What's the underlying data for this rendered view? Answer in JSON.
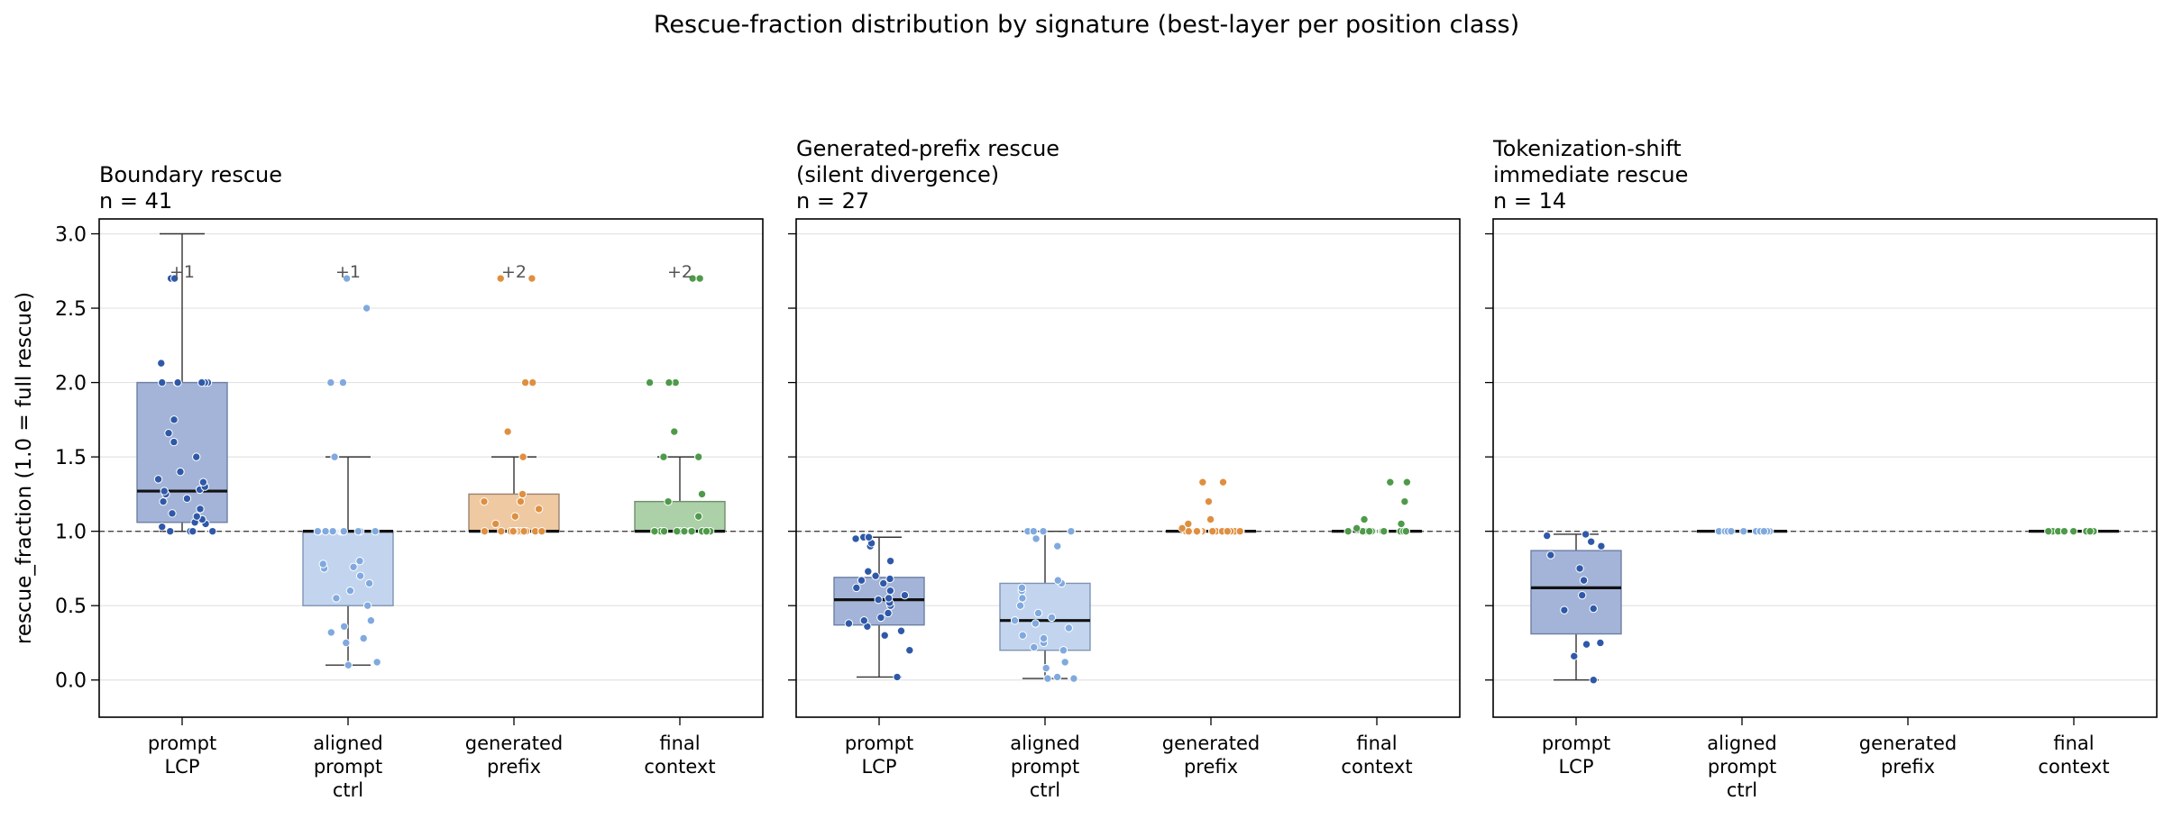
{
  "suptitle": "Rescue-fraction distribution by signature (best-layer per position class)",
  "chart_data": {
    "type": "box",
    "ylabel": "rescue_fraction  (1.0 = full rescue)",
    "ylim": [
      -0.25,
      3.1
    ],
    "yticks": [
      "0.0",
      "0.5",
      "1.0",
      "1.5",
      "2.0",
      "2.5",
      "3.0"
    ],
    "reference_line": 1.0,
    "grid": "horizontal",
    "categories": [
      [
        "prompt",
        "LCP"
      ],
      [
        "aligned",
        "prompt",
        "ctrl"
      ],
      [
        "generated",
        "prefix"
      ],
      [
        "final",
        "context"
      ]
    ],
    "colors": {
      "prompt LCP": {
        "box": "#a3b4d8",
        "edge": "#6d7fa3",
        "point": "#2f59a8"
      },
      "aligned prompt ctrl": {
        "box": "#c3d5ee",
        "edge": "#7e93b3",
        "point": "#80a9de"
      },
      "generated prefix": {
        "box": "#efc9a2",
        "edge": "#9a8470",
        "point": "#df8f40"
      },
      "final context": {
        "box": "#acd0a8",
        "edge": "#6f8e6c",
        "point": "#4e9a4a"
      }
    },
    "panels": [
      {
        "title": [
          "Boundary rescue",
          "n = 41"
        ],
        "boxes": [
          {
            "q1": 1.06,
            "median": 1.27,
            "q3": 2.0,
            "whisker_low": 1.0,
            "whisker_high": 3.0,
            "points": [
              1.0,
              1.0,
              1.0,
              1.0,
              1.0,
              1.0,
              1.03,
              1.05,
              1.06,
              1.08,
              1.1,
              1.12,
              1.15,
              1.2,
              1.22,
              1.25,
              1.27,
              1.28,
              1.3,
              1.33,
              1.35,
              1.4,
              1.5,
              1.6,
              1.66,
              1.75,
              2.0,
              2.0,
              2.0,
              2.0,
              2.0,
              2.0,
              2.13,
              2.7,
              2.7
            ],
            "overflow": "+1"
          },
          {
            "q1": 0.5,
            "median": 1.0,
            "q3": 1.0,
            "whisker_low": 0.1,
            "whisker_high": 1.5,
            "points": [
              0.1,
              0.12,
              0.25,
              0.28,
              0.32,
              0.36,
              0.4,
              0.5,
              0.55,
              0.6,
              0.65,
              0.7,
              0.75,
              0.76,
              0.78,
              0.8,
              1.0,
              1.0,
              1.0,
              1.0,
              1.0,
              1.0,
              1.0,
              1.0,
              1.0,
              1.0,
              1.0,
              1.0,
              1.0,
              1.5,
              1.5,
              2.0,
              2.0,
              2.5,
              2.7
            ],
            "overflow": "+1"
          },
          {
            "q1": 1.0,
            "median": 1.0,
            "q3": 1.25,
            "whisker_low": 1.0,
            "whisker_high": 1.5,
            "points": [
              1.0,
              1.0,
              1.0,
              1.0,
              1.0,
              1.0,
              1.0,
              1.0,
              1.0,
              1.0,
              1.0,
              1.0,
              1.05,
              1.1,
              1.15,
              1.2,
              1.2,
              1.25,
              1.5,
              1.67,
              2.0,
              2.0,
              2.7,
              2.7
            ],
            "overflow": "+2"
          },
          {
            "q1": 1.0,
            "median": 1.0,
            "q3": 1.2,
            "whisker_low": 1.0,
            "whisker_high": 1.5,
            "points": [
              1.0,
              1.0,
              1.0,
              1.0,
              1.0,
              1.0,
              1.0,
              1.0,
              1.0,
              1.0,
              1.0,
              1.0,
              1.0,
              1.1,
              1.2,
              1.25,
              1.5,
              1.5,
              1.67,
              2.0,
              2.0,
              2.0,
              2.7,
              2.7
            ],
            "overflow": "+2"
          }
        ]
      },
      {
        "title": [
          "Generated-prefix rescue",
          "(silent divergence)",
          "n = 27"
        ],
        "boxes": [
          {
            "q1": 0.37,
            "median": 0.54,
            "q3": 0.69,
            "whisker_low": 0.02,
            "whisker_high": 0.96,
            "points": [
              0.02,
              0.2,
              0.3,
              0.33,
              0.36,
              0.38,
              0.4,
              0.42,
              0.45,
              0.5,
              0.52,
              0.54,
              0.55,
              0.57,
              0.6,
              0.62,
              0.65,
              0.67,
              0.68,
              0.7,
              0.73,
              0.8,
              0.9,
              0.92,
              0.96,
              0.96,
              0.95
            ],
            "overflow": ""
          },
          {
            "q1": 0.2,
            "median": 0.4,
            "q3": 0.65,
            "whisker_low": 0.01,
            "whisker_high": 1.0,
            "points": [
              0.01,
              0.01,
              0.02,
              0.08,
              0.12,
              0.2,
              0.22,
              0.25,
              0.28,
              0.3,
              0.35,
              0.38,
              0.4,
              0.42,
              0.45,
              0.5,
              0.55,
              0.6,
              0.62,
              0.65,
              0.67,
              0.9,
              0.95,
              1.0,
              1.0,
              1.0,
              1.0
            ],
            "overflow": ""
          },
          {
            "q1": 1.0,
            "median": 1.0,
            "q3": 1.0,
            "whisker_low": 1.0,
            "whisker_high": 1.0,
            "points": [
              1.0,
              1.0,
              1.0,
              1.0,
              1.0,
              1.0,
              1.0,
              1.0,
              1.0,
              1.0,
              1.0,
              1.0,
              1.0,
              1.0,
              1.0,
              1.0,
              1.0,
              1.0,
              1.0,
              1.0,
              1.0,
              1.02,
              1.05,
              1.08,
              1.2,
              1.33,
              1.33
            ],
            "overflow": ""
          },
          {
            "q1": 1.0,
            "median": 1.0,
            "q3": 1.0,
            "whisker_low": 1.0,
            "whisker_high": 1.0,
            "points": [
              1.0,
              1.0,
              1.0,
              1.0,
              1.0,
              1.0,
              1.0,
              1.0,
              1.0,
              1.0,
              1.0,
              1.0,
              1.0,
              1.0,
              1.0,
              1.0,
              1.0,
              1.0,
              1.0,
              1.0,
              1.0,
              1.02,
              1.05,
              1.08,
              1.2,
              1.33,
              1.33
            ],
            "overflow": ""
          }
        ]
      },
      {
        "title": [
          "Tokenization-shift",
          "immediate rescue",
          "n = 14"
        ],
        "boxes": [
          {
            "q1": 0.31,
            "median": 0.62,
            "q3": 0.87,
            "whisker_low": 0.0,
            "whisker_high": 0.98,
            "points": [
              0.0,
              0.16,
              0.24,
              0.25,
              0.47,
              0.48,
              0.57,
              0.67,
              0.75,
              0.84,
              0.9,
              0.93,
              0.97,
              0.98
            ],
            "overflow": ""
          },
          {
            "q1": 1.0,
            "median": 1.0,
            "q3": 1.0,
            "whisker_low": 1.0,
            "whisker_high": 1.0,
            "points": [
              1.0,
              1.0,
              1.0,
              1.0,
              1.0,
              1.0,
              1.0,
              1.0,
              1.0,
              1.0,
              1.0,
              1.0,
              1.0,
              1.0
            ],
            "overflow": ""
          },
          null,
          {
            "q1": 1.0,
            "median": 1.0,
            "q3": 1.0,
            "whisker_low": 1.0,
            "whisker_high": 1.0,
            "points": [
              1.0,
              1.0,
              1.0,
              1.0,
              1.0,
              1.0,
              1.0,
              1.0,
              1.0,
              1.0,
              1.0,
              1.0,
              1.0,
              1.0
            ],
            "overflow": ""
          }
        ]
      }
    ]
  }
}
